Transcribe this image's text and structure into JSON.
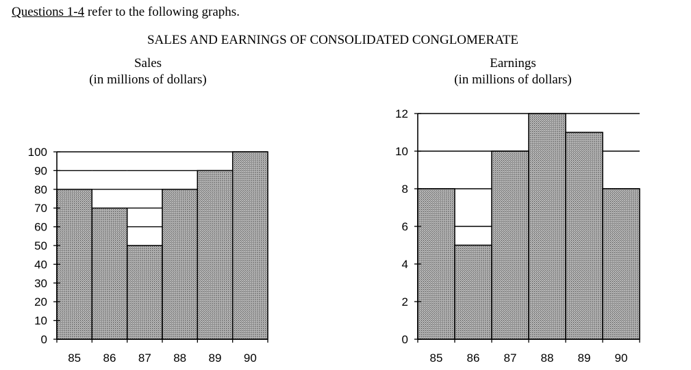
{
  "intro": {
    "ref": "Questions 1-4",
    "rest": " refer to the following graphs."
  },
  "main_title": "SALES AND EARNINGS OF CONSOLIDATED CONGLOMERATE",
  "chart_data": [
    {
      "type": "bar",
      "title": "Sales",
      "subtitle": "(in millions of dollars)",
      "categories": [
        "85",
        "86",
        "87",
        "88",
        "89",
        "90"
      ],
      "values": [
        80,
        70,
        50,
        80,
        90,
        100
      ],
      "ylim": [
        0,
        100
      ],
      "yticks": [
        0,
        10,
        20,
        30,
        40,
        50,
        60,
        70,
        80,
        90,
        100
      ],
      "bar_fill": "#a8a8a8"
    },
    {
      "type": "bar",
      "title": "Earnings",
      "subtitle": "(in millions of dollars)",
      "categories": [
        "85",
        "86",
        "87",
        "88",
        "89",
        "90"
      ],
      "values": [
        8,
        5,
        10,
        12,
        11,
        8
      ],
      "ylim": [
        0,
        12
      ],
      "yticks": [
        0,
        2,
        4,
        6,
        8,
        10,
        12
      ],
      "bar_fill": "#a8a8a8"
    }
  ]
}
